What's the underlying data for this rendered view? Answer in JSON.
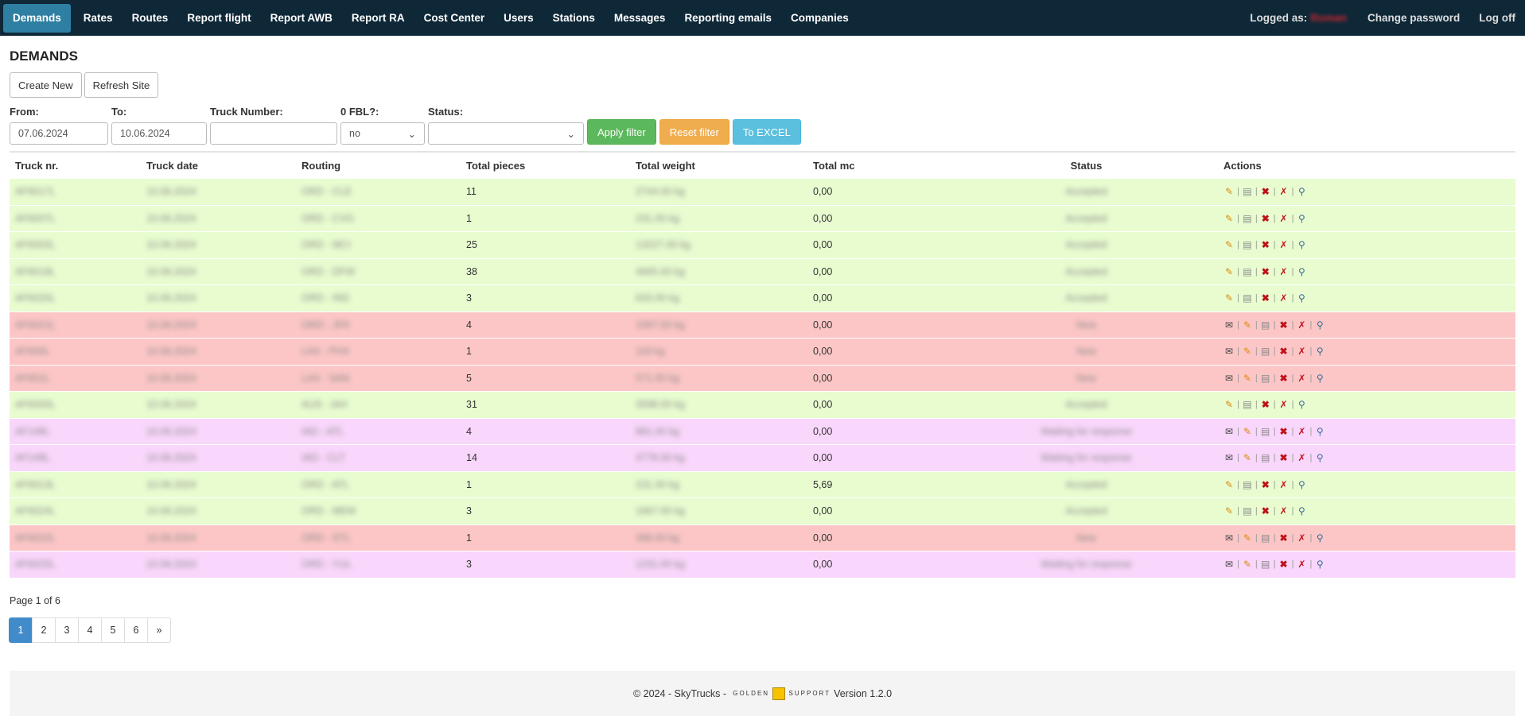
{
  "nav": {
    "items": [
      {
        "label": "Demands",
        "active": true
      },
      {
        "label": "Rates"
      },
      {
        "label": "Routes"
      },
      {
        "label": "Report flight"
      },
      {
        "label": "Report AWB"
      },
      {
        "label": "Report RA"
      },
      {
        "label": "Cost Center"
      },
      {
        "label": "Users"
      },
      {
        "label": "Stations"
      },
      {
        "label": "Messages"
      },
      {
        "label": "Reporting emails"
      },
      {
        "label": "Companies"
      }
    ],
    "logged_as_label": "Logged as:",
    "logged_user": "Roman",
    "change_password": "Change password",
    "log_off": "Log off"
  },
  "page_title": "DEMANDS",
  "buttons": {
    "create_new": "Create New",
    "refresh_site": "Refresh Site"
  },
  "filter": {
    "from_label": "From:",
    "from_value": "07.06.2024",
    "to_label": "To:",
    "to_value": "10.06.2024",
    "truck_label": "Truck Number:",
    "truck_value": "",
    "fbl_label": "0 FBL?:",
    "fbl_value": "no",
    "status_label": "Status:",
    "status_value": "",
    "apply": "Apply filter",
    "reset": "Reset filter",
    "excel": "To EXCEL"
  },
  "table": {
    "headers": [
      "Truck nr.",
      "Truck date",
      "Routing",
      "Total pieces",
      "Total weight",
      "Total mc",
      "Status",
      "Actions"
    ],
    "rows": [
      {
        "truck": "AF6017L",
        "date": "10.06.2024",
        "routing": "ORD - CLE",
        "pieces": "11",
        "weight": "2744.00 kg",
        "mc": "0,00",
        "status": "Accepted",
        "color": "green"
      },
      {
        "truck": "AF6007L",
        "date": "10.06.2024",
        "routing": "ORD - CVG",
        "pieces": "1",
        "weight": "231.00 kg",
        "mc": "0,00",
        "status": "Accepted",
        "color": "green"
      },
      {
        "truck": "AF6002L",
        "date": "10.06.2024",
        "routing": "ORD - MCI",
        "pieces": "25",
        "weight": "13227.00 kg",
        "mc": "0,00",
        "status": "Accepted",
        "color": "green"
      },
      {
        "truck": "AF6019L",
        "date": "10.06.2024",
        "routing": "ORD - DFW",
        "pieces": "38",
        "weight": "4665.00 kg",
        "mc": "0,00",
        "status": "Accepted",
        "color": "green"
      },
      {
        "truck": "AF6020L",
        "date": "10.06.2024",
        "routing": "ORD - IND",
        "pieces": "3",
        "weight": "633.00 kg",
        "mc": "0,00",
        "status": "Accepted",
        "color": "green"
      },
      {
        "truck": "AF6021L",
        "date": "10.06.2024",
        "routing": "ORD - JFK",
        "pieces": "4",
        "weight": "1097.00 kg",
        "mc": "0,00",
        "status": "New",
        "color": "red"
      },
      {
        "truck": "AF600L",
        "date": "10.06.2024",
        "routing": "LAX - PHX",
        "pieces": "1",
        "weight": "118 kg",
        "mc": "0,00",
        "status": "New",
        "color": "red"
      },
      {
        "truck": "AF601L",
        "date": "10.06.2024",
        "routing": "LAX - SAN",
        "pieces": "5",
        "weight": "571.00 kg",
        "mc": "0,00",
        "status": "New",
        "color": "red"
      },
      {
        "truck": "AF6000L",
        "date": "10.06.2024",
        "routing": "AUS - IAH",
        "pieces": "31",
        "weight": "3598.00 kg",
        "mc": "0,00",
        "status": "Accepted",
        "color": "green"
      },
      {
        "truck": "AF148L",
        "date": "10.06.2024",
        "routing": "IAD - ATL",
        "pieces": "4",
        "weight": "881.00 kg",
        "mc": "0,00",
        "status": "Waiting for response",
        "color": "pink"
      },
      {
        "truck": "AF148L",
        "date": "10.06.2024",
        "routing": "IAD - CLT",
        "pieces": "14",
        "weight": "4778.00 kg",
        "mc": "0,00",
        "status": "Waiting for response",
        "color": "pink"
      },
      {
        "truck": "AF6013L",
        "date": "10.06.2024",
        "routing": "ORD - ATL",
        "pieces": "1",
        "weight": "231.00 kg",
        "mc": "5,69",
        "status": "Accepted",
        "color": "green"
      },
      {
        "truck": "AF6024L",
        "date": "10.06.2024",
        "routing": "ORD - MEM",
        "pieces": "3",
        "weight": "1667.00 kg",
        "mc": "0,00",
        "status": "Accepted",
        "color": "green"
      },
      {
        "truck": "AF6022L",
        "date": "10.06.2024",
        "routing": "ORD - STL",
        "pieces": "1",
        "weight": "398.00 kg",
        "mc": "0,00",
        "status": "New",
        "color": "red"
      },
      {
        "truck": "AF6025L",
        "date": "10.06.2024",
        "routing": "ORD - YUL",
        "pieces": "3",
        "weight": "1231.00 kg",
        "mc": "0,00",
        "status": "Waiting for response",
        "color": "pink"
      }
    ]
  },
  "pager": {
    "info": "Page 1 of 6",
    "pages": [
      "1",
      "2",
      "3",
      "4",
      "5",
      "6",
      "»"
    ]
  },
  "footer": {
    "copyright": "© 2024 - SkyTrucks -",
    "logo_left": "GOLDEN",
    "logo_right": "SUPPORT",
    "version": "Version 1.2.0"
  }
}
